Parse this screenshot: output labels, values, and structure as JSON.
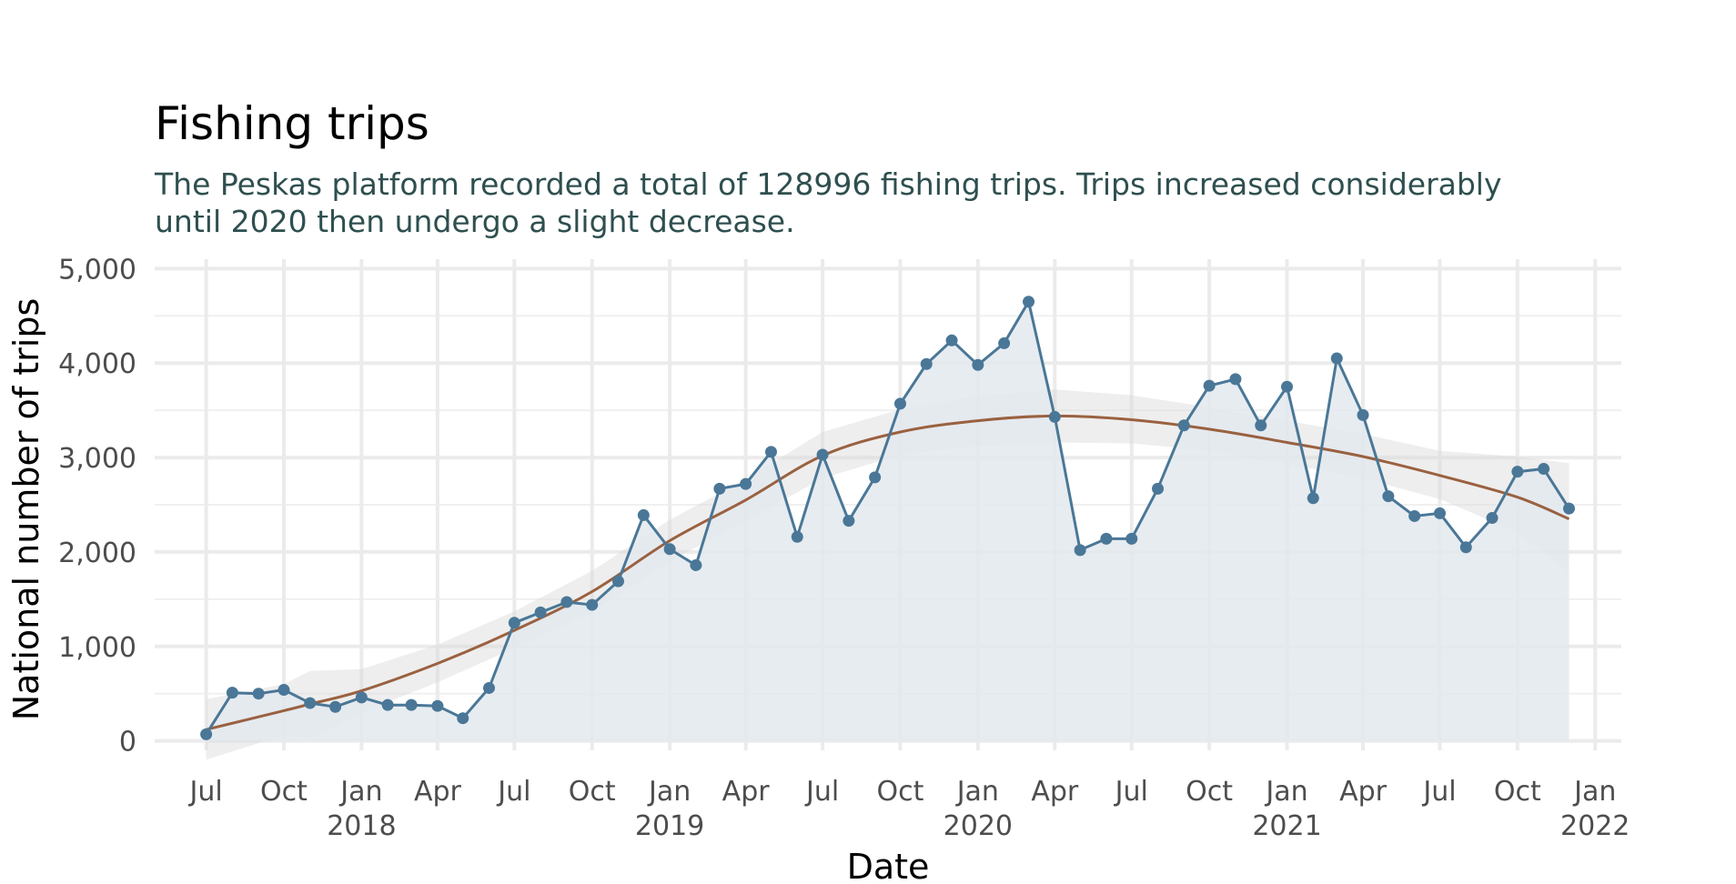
{
  "chart_data": {
    "type": "line",
    "title": "Fishing trips",
    "subtitle": [
      "The Peskas platform recorded a total of 128996 fishing trips. Trips increased considerably",
      "until 2020 then undergo a slight decrease."
    ],
    "xlabel": "Date",
    "ylabel": "National number of  trips",
    "xlim": [
      "2017-05-01",
      "2022-02-01"
    ],
    "ylim": [
      -100,
      5100
    ],
    "grid": true,
    "legend": "none",
    "y_ticks": [
      {
        "value": 0,
        "label": "0"
      },
      {
        "value": 1000,
        "label": "1,000"
      },
      {
        "value": 2000,
        "label": "2,000"
      },
      {
        "value": 3000,
        "label": "3,000"
      },
      {
        "value": 4000,
        "label": "4,000"
      },
      {
        "value": 5000,
        "label": "5,000"
      }
    ],
    "x_ticks": [
      {
        "date": "2017-07-01",
        "label": "Jul",
        "year": ""
      },
      {
        "date": "2017-10-01",
        "label": "Oct",
        "year": ""
      },
      {
        "date": "2018-01-01",
        "label": "Jan",
        "year": "2018"
      },
      {
        "date": "2018-04-01",
        "label": "Apr",
        "year": ""
      },
      {
        "date": "2018-07-01",
        "label": "Jul",
        "year": ""
      },
      {
        "date": "2018-10-01",
        "label": "Oct",
        "year": ""
      },
      {
        "date": "2019-01-01",
        "label": "Jan",
        "year": "2019"
      },
      {
        "date": "2019-04-01",
        "label": "Apr",
        "year": ""
      },
      {
        "date": "2019-07-01",
        "label": "Jul",
        "year": ""
      },
      {
        "date": "2019-10-01",
        "label": "Oct",
        "year": ""
      },
      {
        "date": "2020-01-01",
        "label": "Jan",
        "year": "2020"
      },
      {
        "date": "2020-04-01",
        "label": "Apr",
        "year": ""
      },
      {
        "date": "2020-07-01",
        "label": "Jul",
        "year": ""
      },
      {
        "date": "2020-10-01",
        "label": "Oct",
        "year": ""
      },
      {
        "date": "2021-01-01",
        "label": "Jan",
        "year": "2021"
      },
      {
        "date": "2021-04-01",
        "label": "Apr",
        "year": ""
      },
      {
        "date": "2021-07-01",
        "label": "Jul",
        "year": ""
      },
      {
        "date": "2021-10-01",
        "label": "Oct",
        "year": ""
      },
      {
        "date": "2022-01-01",
        "label": "Jan",
        "year": "2022"
      }
    ],
    "series": [
      {
        "kind": "observed",
        "color": "#4a7797",
        "area_color": "#e3e9ee",
        "points": [
          {
            "x": "2017-07-01",
            "y": 70
          },
          {
            "x": "2017-08-01",
            "y": 510
          },
          {
            "x": "2017-09-01",
            "y": 500
          },
          {
            "x": "2017-10-01",
            "y": 540
          },
          {
            "x": "2017-11-01",
            "y": 400
          },
          {
            "x": "2017-12-01",
            "y": 360
          },
          {
            "x": "2018-01-01",
            "y": 460
          },
          {
            "x": "2018-02-01",
            "y": 380
          },
          {
            "x": "2018-03-01",
            "y": 380
          },
          {
            "x": "2018-04-01",
            "y": 370
          },
          {
            "x": "2018-05-01",
            "y": 240
          },
          {
            "x": "2018-06-01",
            "y": 560
          },
          {
            "x": "2018-07-01",
            "y": 1250
          },
          {
            "x": "2018-08-01",
            "y": 1360
          },
          {
            "x": "2018-09-01",
            "y": 1470
          },
          {
            "x": "2018-10-01",
            "y": 1440
          },
          {
            "x": "2018-11-01",
            "y": 1690
          },
          {
            "x": "2018-12-01",
            "y": 2390
          },
          {
            "x": "2019-01-01",
            "y": 2030
          },
          {
            "x": "2019-02-01",
            "y": 1860
          },
          {
            "x": "2019-03-01",
            "y": 2670
          },
          {
            "x": "2019-04-01",
            "y": 2720
          },
          {
            "x": "2019-05-01",
            "y": 3060
          },
          {
            "x": "2019-06-01",
            "y": 2160
          },
          {
            "x": "2019-07-01",
            "y": 3030
          },
          {
            "x": "2019-08-01",
            "y": 2330
          },
          {
            "x": "2019-09-01",
            "y": 2790
          },
          {
            "x": "2019-10-01",
            "y": 3570
          },
          {
            "x": "2019-11-01",
            "y": 3990
          },
          {
            "x": "2019-12-01",
            "y": 4240
          },
          {
            "x": "2020-01-01",
            "y": 3980
          },
          {
            "x": "2020-02-01",
            "y": 4210
          },
          {
            "x": "2020-03-01",
            "y": 4650
          },
          {
            "x": "2020-04-01",
            "y": 3430
          },
          {
            "x": "2020-05-01",
            "y": 2020
          },
          {
            "x": "2020-06-01",
            "y": 2140
          },
          {
            "x": "2020-07-01",
            "y": 2140
          },
          {
            "x": "2020-08-01",
            "y": 2670
          },
          {
            "x": "2020-09-01",
            "y": 3340
          },
          {
            "x": "2020-10-01",
            "y": 3760
          },
          {
            "x": "2020-11-01",
            "y": 3830
          },
          {
            "x": "2020-12-01",
            "y": 3340
          },
          {
            "x": "2021-01-01",
            "y": 3750
          },
          {
            "x": "2021-02-01",
            "y": 2570
          },
          {
            "x": "2021-03-01",
            "y": 4050
          },
          {
            "x": "2021-04-01",
            "y": 3450
          },
          {
            "x": "2021-05-01",
            "y": 2590
          },
          {
            "x": "2021-06-01",
            "y": 2380
          },
          {
            "x": "2021-07-01",
            "y": 2410
          },
          {
            "x": "2021-08-01",
            "y": 2050
          },
          {
            "x": "2021-09-01",
            "y": 2360
          },
          {
            "x": "2021-10-01",
            "y": 2850
          },
          {
            "x": "2021-11-01",
            "y": 2880
          },
          {
            "x": "2021-12-01",
            "y": 2460
          }
        ]
      },
      {
        "kind": "smooth",
        "color": "#9a6140",
        "band_color": "#d9d9d9",
        "points": [
          {
            "x": "2017-07-01",
            "y": 120,
            "lo": -200,
            "hi": 440
          },
          {
            "x": "2017-10-01",
            "y": 320,
            "lo": 60,
            "hi": 600
          },
          {
            "x": "2017-11-01",
            "y": 390,
            "lo": 30,
            "hi": 740
          },
          {
            "x": "2018-01-01",
            "y": 530,
            "lo": 300,
            "hi": 760
          },
          {
            "x": "2018-04-01",
            "y": 820,
            "lo": 620,
            "hi": 1020
          },
          {
            "x": "2018-07-01",
            "y": 1170,
            "lo": 980,
            "hi": 1370
          },
          {
            "x": "2018-10-01",
            "y": 1580,
            "lo": 1360,
            "hi": 1800
          },
          {
            "x": "2019-01-01",
            "y": 2120,
            "lo": 1900,
            "hi": 2340
          },
          {
            "x": "2019-04-01",
            "y": 2550,
            "lo": 2330,
            "hi": 2770
          },
          {
            "x": "2019-07-01",
            "y": 3020,
            "lo": 2780,
            "hi": 3270
          },
          {
            "x": "2019-10-01",
            "y": 3270,
            "lo": 3030,
            "hi": 3510
          },
          {
            "x": "2020-01-01",
            "y": 3390,
            "lo": 3120,
            "hi": 3650
          },
          {
            "x": "2020-04-01",
            "y": 3440,
            "lo": 3160,
            "hi": 3720
          },
          {
            "x": "2020-07-01",
            "y": 3400,
            "lo": 3150,
            "hi": 3660
          },
          {
            "x": "2020-10-01",
            "y": 3300,
            "lo": 3070,
            "hi": 3530
          },
          {
            "x": "2021-01-01",
            "y": 3160,
            "lo": 2930,
            "hi": 3390
          },
          {
            "x": "2021-04-01",
            "y": 3010,
            "lo": 2780,
            "hi": 3250
          },
          {
            "x": "2021-07-01",
            "y": 2810,
            "lo": 2560,
            "hi": 3070
          },
          {
            "x": "2021-10-01",
            "y": 2580,
            "lo": 2210,
            "hi": 3010
          },
          {
            "x": "2021-12-01",
            "y": 2350,
            "lo": 1780,
            "hi": 2940
          }
        ]
      }
    ]
  }
}
